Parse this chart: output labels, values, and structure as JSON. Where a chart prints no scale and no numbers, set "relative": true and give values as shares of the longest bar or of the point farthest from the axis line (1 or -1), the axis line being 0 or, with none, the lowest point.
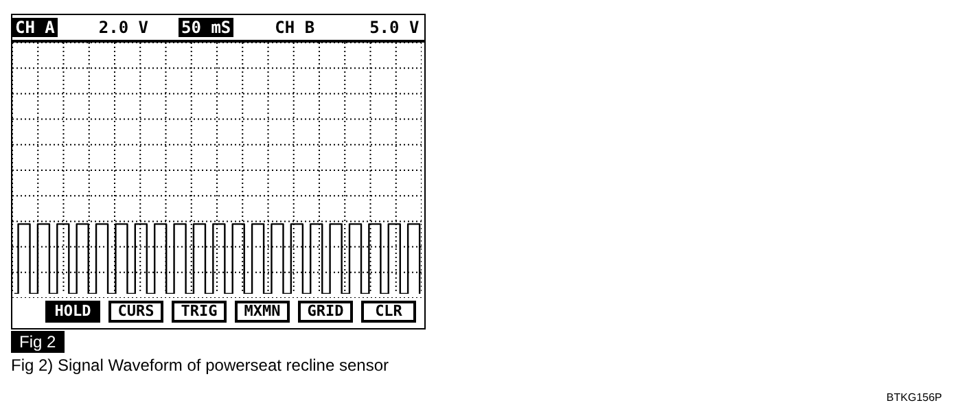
{
  "chart_data": {
    "type": "step",
    "relative": true,
    "grid": true,
    "color": "#000000",
    "categories": [
      null,
      null,
      null,
      null,
      null,
      null,
      null,
      null,
      null,
      null,
      null,
      null,
      null,
      null,
      null,
      null,
      null,
      null,
      null,
      null,
      null,
      null,
      null,
      null,
      null,
      null,
      null,
      null,
      null,
      null,
      null,
      null,
      null,
      null,
      null,
      null,
      null,
      null,
      null,
      null,
      null,
      null,
      null,
      null,
      null,
      null,
      null,
      null,
      null,
      null,
      null,
      null,
      null,
      null,
      null,
      null,
      null,
      null,
      null,
      null,
      null,
      null,
      null,
      null,
      null,
      null,
      null,
      null,
      null,
      null,
      null,
      null,
      null,
      null,
      null,
      null,
      null,
      null,
      null,
      null,
      null,
      null,
      null,
      null,
      null,
      null,
      null,
      null,
      null,
      null,
      null,
      null,
      null,
      null,
      null,
      null,
      null,
      null,
      null,
      null,
      null,
      null,
      null,
      null,
      null
    ],
    "values": [
      0,
      1,
      1,
      1,
      0,
      0,
      1,
      1,
      1,
      0,
      0,
      1,
      1,
      1,
      0,
      0,
      1,
      1,
      1,
      0,
      0,
      1,
      1,
      1,
      0,
      0,
      1,
      1,
      1,
      0,
      0,
      1,
      1,
      1,
      0,
      0,
      1,
      1,
      1,
      0,
      0,
      1,
      1,
      1,
      0,
      0,
      1,
      1,
      1,
      0,
      0,
      1,
      1,
      1,
      0,
      0,
      1,
      1,
      1,
      0,
      0,
      1,
      1,
      1,
      0,
      0,
      1,
      1,
      1,
      0,
      0,
      1,
      1,
      1,
      0,
      0,
      1,
      1,
      1,
      0,
      0,
      1,
      1,
      1,
      0,
      0,
      1,
      1,
      1,
      0,
      0,
      1,
      1,
      1,
      0,
      0,
      1,
      1,
      1,
      0,
      0,
      1,
      1,
      1,
      0
    ],
    "annotations": [
      "CH A",
      "2.0 V",
      "50 mS",
      "CH B",
      "5.0 V",
      "HOLD",
      "CURS",
      "TRIG",
      "MXMN",
      "GRID",
      "CLR",
      "Fig 2",
      "Fig 2) Signal Waveform of powerseat recline sensor",
      "BTKG156P"
    ]
  }
}
